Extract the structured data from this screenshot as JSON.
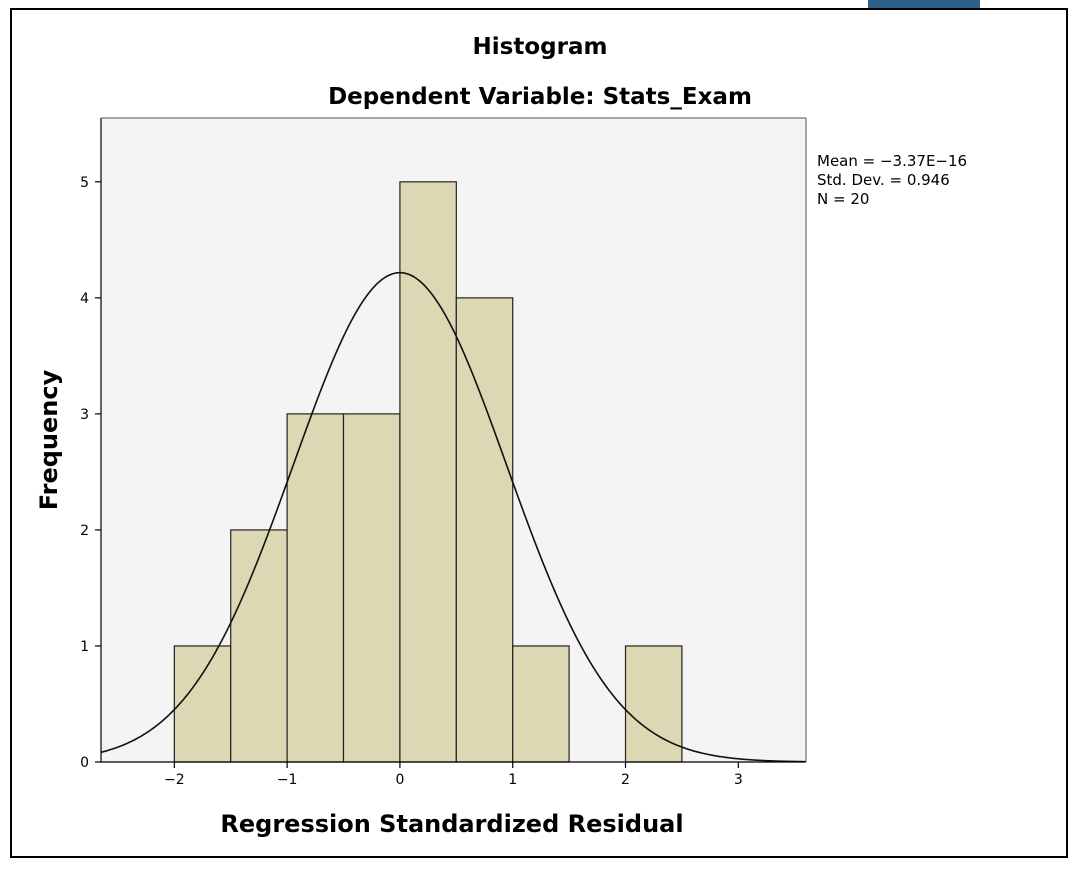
{
  "window": {
    "accent_tab_color": "#2e5f86"
  },
  "chart_data": {
    "type": "bar",
    "title": "Histogram",
    "subtitle": "Dependent Variable: Stats_Exam",
    "xlabel": "Regression Standardized Residual",
    "ylabel": "Frequency",
    "bins": [
      {
        "from": -2.0,
        "to": -1.5,
        "count": 1
      },
      {
        "from": -1.5,
        "to": -1.0,
        "count": 2
      },
      {
        "from": -1.0,
        "to": -0.5,
        "count": 3
      },
      {
        "from": -0.5,
        "to": 0.0,
        "count": 3
      },
      {
        "from": 0.0,
        "to": 0.5,
        "count": 5
      },
      {
        "from": 0.5,
        "to": 1.0,
        "count": 4
      },
      {
        "from": 1.0,
        "to": 1.5,
        "count": 1
      },
      {
        "from": 1.5,
        "to": 2.0,
        "count": 0
      },
      {
        "from": 2.0,
        "to": 2.5,
        "count": 1
      }
    ],
    "xlim": [
      -2.65,
      3.6
    ],
    "ylim": [
      0,
      5.55
    ],
    "x_ticks": [
      -2,
      -1,
      0,
      1,
      2,
      3
    ],
    "x_tick_labels": [
      "−2",
      "−1",
      "0",
      "1",
      "2",
      "3"
    ],
    "y_ticks": [
      0,
      1,
      2,
      3,
      4,
      5
    ],
    "y_tick_labels": [
      "0",
      "1",
      "2",
      "3",
      "4",
      "5"
    ],
    "grid": false,
    "normal_curve": {
      "mean": 0.0,
      "sd": 0.946,
      "n": 20,
      "bin_width": 0.5
    },
    "stats": {
      "mean_label": "Mean = −3.37E−16",
      "sd_label": "Std. Dev. = 0.946",
      "n_label": "N = 20"
    },
    "colors": {
      "bar_fill": "#dcd8b4",
      "bar_stroke": "#222222",
      "plot_bg": "#f4f4f4",
      "curve": "#111111"
    }
  }
}
